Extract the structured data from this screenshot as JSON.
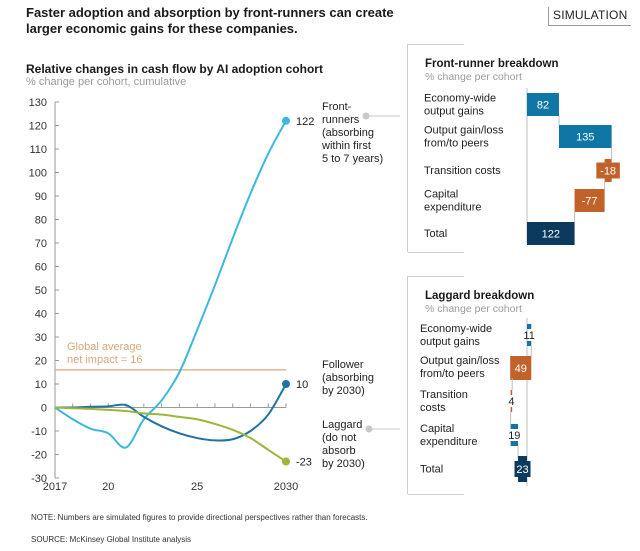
{
  "headline": "Faster adoption and absorption by front-runners can create larger economic gains for these companies.",
  "badge": "SIMULATION",
  "note": "NOTE: Numbers are simulated figures to provide directional perspectives rather than forecasts.",
  "source": "SOURCE:  McKinsey Global Institute analysis",
  "colors": {
    "front_runner": "#3eb6dd",
    "follower": "#1f72a3",
    "laggard": "#9db53a",
    "global_avg": "#d9a77a",
    "positive_bar": "#0f76a6",
    "negative_bar": "#c0622a",
    "total_bar": "#0b3a5e"
  },
  "chart_data": [
    {
      "type": "line",
      "title": "Relative changes in cash flow by AI adoption cohort",
      "subtitle": "% change per cohort, cumulative",
      "xlabel": "",
      "ylabel": "",
      "xlim": [
        2017,
        2030
      ],
      "ylim": [
        -30,
        130
      ],
      "yticks": [
        130,
        120,
        110,
        100,
        90,
        80,
        70,
        60,
        50,
        40,
        30,
        20,
        10,
        0,
        -10,
        -20,
        -30
      ],
      "xtick_labels": [
        {
          "x": 2017,
          "label": "2017"
        },
        {
          "x": 2020,
          "label": "20"
        },
        {
          "x": 2025,
          "label": "25"
        },
        {
          "x": 2030,
          "label": "2030"
        }
      ],
      "x": [
        2017,
        2018,
        2019,
        2020,
        2021,
        2022,
        2023,
        2024,
        2025,
        2026,
        2027,
        2028,
        2029,
        2030
      ],
      "series": [
        {
          "name": "Front-runners (absorbing within first 5 to 7 years)",
          "key": "front_runner",
          "label_lines": [
            "Front-",
            "runners",
            "(absorbing",
            "within first",
            "5 to 7 years)"
          ],
          "end_label": "122",
          "values": [
            0,
            -5,
            -9,
            -11,
            -17,
            -5,
            3,
            15,
            33,
            52,
            72,
            91,
            108,
            122
          ]
        },
        {
          "name": "Follower (absorbing by 2030)",
          "key": "follower",
          "label_lines": [
            "Follower",
            "(absorbing",
            "by 2030)"
          ],
          "end_label": "10",
          "values": [
            0,
            0,
            0.3,
            0.5,
            1,
            -4,
            -8,
            -11,
            -13,
            -14,
            -13.5,
            -10,
            -3,
            10
          ]
        },
        {
          "name": "Laggard (do not absorb by 2030)",
          "key": "laggard",
          "label_lines": [
            "Laggard",
            "(do not",
            "absorb",
            "by 2030)"
          ],
          "end_label": "-23",
          "values": [
            0,
            -0.3,
            -0.6,
            -1,
            -1.5,
            -2.5,
            -3,
            -4,
            -5,
            -7,
            -9.5,
            -13,
            -18,
            -23
          ]
        }
      ],
      "annotations": [
        {
          "type": "hline",
          "y": 16,
          "label_lines": [
            "Global average",
            "net impact = 16"
          ]
        }
      ],
      "grid": false,
      "legend": "right"
    },
    {
      "type": "bar",
      "subtype": "waterfall",
      "title": "Front-runner breakdown",
      "subtitle": "% change per cohort",
      "categories": [
        "Economy-wide output gains",
        "Output gain/loss from/to peers",
        "Transition costs",
        "Capital expenditure",
        "Total"
      ],
      "category_lines": [
        [
          "Economy-wide",
          "output gains"
        ],
        [
          "Output gain/loss",
          "from/to peers"
        ],
        [
          "Transition costs"
        ],
        [
          "Capital",
          "expenditure"
        ],
        [
          "Total"
        ]
      ],
      "values": [
        82,
        135,
        -18,
        -77,
        122
      ],
      "labels": [
        "82",
        "135",
        "-18",
        "-77",
        "122"
      ],
      "is_total": [
        false,
        false,
        false,
        false,
        true
      ]
    },
    {
      "type": "bar",
      "subtype": "waterfall",
      "title": "Laggard breakdown",
      "subtitle": "% change per cohort",
      "categories": [
        "Economy-wide output gains",
        "Output gain/loss from/to peers",
        "Transition costs",
        "Capital expenditure",
        "Total"
      ],
      "category_lines": [
        [
          "Economy-wide",
          "output gains"
        ],
        [
          "Output gain/loss",
          "from/to peers"
        ],
        [
          "Transition",
          "costs"
        ],
        [
          "Capital",
          "expenditure"
        ],
        [
          "Total"
        ]
      ],
      "values": [
        11,
        -49,
        -4,
        19,
        -23
      ],
      "labels": [
        "11",
        "49",
        "4",
        "19",
        "23"
      ],
      "is_total": [
        false,
        false,
        false,
        false,
        true
      ]
    }
  ]
}
